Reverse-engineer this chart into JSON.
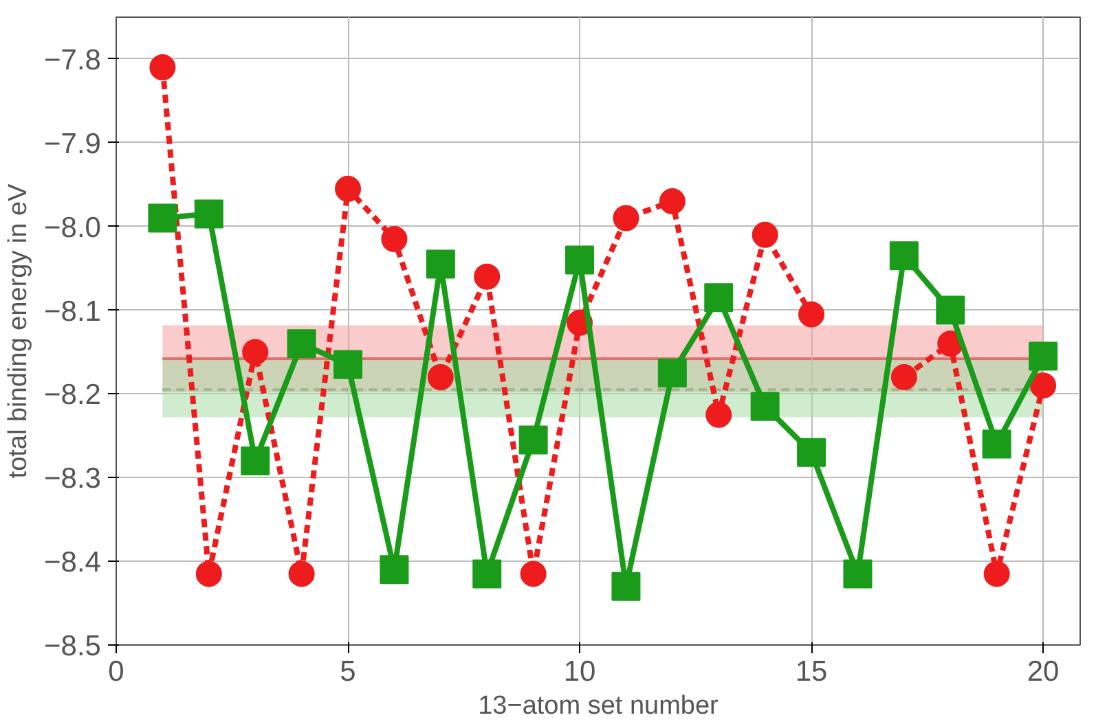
{
  "chart_data": {
    "type": "line",
    "xlabel": "13−atom set number",
    "ylabel": "total binding energy in eV",
    "x": [
      1,
      2,
      3,
      4,
      5,
      6,
      7,
      8,
      9,
      10,
      11,
      12,
      13,
      14,
      15,
      16,
      17,
      18,
      19,
      20
    ],
    "series": [
      {
        "color": "#ee1c1c",
        "marker": "circle",
        "line_style": "dashed",
        "values": [
          -7.81,
          -8.415,
          -8.15,
          -8.415,
          -7.955,
          -8.015,
          -8.18,
          -8.06,
          -8.415,
          -8.115,
          -7.99,
          -7.97,
          -8.225,
          -8.01,
          -8.105,
          null,
          -8.18,
          -8.14,
          -8.415,
          -8.19
        ]
      },
      {
        "color": "#1a9c1a",
        "marker": "square",
        "line_style": "solid",
        "values": [
          -7.99,
          -7.985,
          -8.28,
          -8.14,
          -8.165,
          -8.41,
          -8.045,
          -8.415,
          -8.255,
          -8.04,
          -8.43,
          -8.175,
          -8.085,
          -8.215,
          -8.27,
          -8.415,
          -8.035,
          -8.1,
          -8.26,
          -8.155
        ]
      }
    ],
    "ref_lines": [
      {
        "axis": "y",
        "value": -8.158,
        "color": "#c0392b",
        "line_style": "solid"
      },
      {
        "axis": "y",
        "value": -8.195,
        "color": "#3c6b3c",
        "line_style": "dashed"
      }
    ],
    "bands": [
      {
        "axis": "y",
        "from": -8.198,
        "to": -8.118,
        "color": "#f4a0a0"
      },
      {
        "axis": "y",
        "from": -8.228,
        "to": -8.16,
        "color": "#a8dca8"
      }
    ],
    "xlim": [
      0,
      20.8
    ],
    "ylim": [
      -8.5,
      -7.75
    ],
    "xticks": [
      0,
      5,
      10,
      15,
      20
    ],
    "yticks": [
      {
        "value": -8.5,
        "label": "−8.5"
      },
      {
        "value": -8.4,
        "label": "−8.4"
      },
      {
        "value": -8.3,
        "label": "−8.3"
      },
      {
        "value": -8.2,
        "label": "−8.2"
      },
      {
        "value": -8.1,
        "label": "−8.1"
      },
      {
        "value": -8.0,
        "label": "−8.0"
      },
      {
        "value": -7.9,
        "label": "−7.9"
      },
      {
        "value": -7.8,
        "label": "−7.8"
      }
    ],
    "grid": true
  }
}
